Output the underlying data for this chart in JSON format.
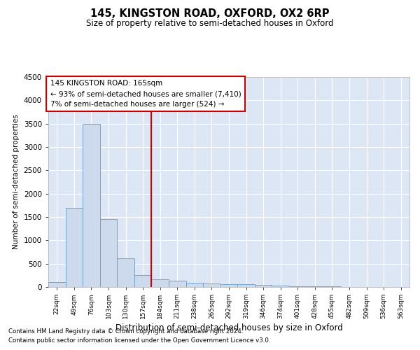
{
  "title1": "145, KINGSTON ROAD, OXFORD, OX2 6RP",
  "title2": "Size of property relative to semi-detached houses in Oxford",
  "xlabel": "Distribution of semi-detached houses by size in Oxford",
  "ylabel": "Number of semi-detached properties",
  "footnote1": "Contains HM Land Registry data © Crown copyright and database right 2024.",
  "footnote2": "Contains public sector information licensed under the Open Government Licence v3.0.",
  "annotation_line1": "145 KINGSTON ROAD: 165sqm",
  "annotation_line2": "← 93% of semi-detached houses are smaller (7,410)",
  "annotation_line3": "7% of semi-detached houses are larger (524) →",
  "bar_color": "#cdd9ec",
  "bar_edge_color": "#6b9ac4",
  "bg_color": "#dce6f5",
  "grid_color": "#ffffff",
  "vline_color": "#cc0000",
  "vline_x_index": 6,
  "ylim": [
    0,
    4500
  ],
  "yticks": [
    0,
    500,
    1000,
    1500,
    2000,
    2500,
    3000,
    3500,
    4000,
    4500
  ],
  "bin_labels": [
    "22sqm",
    "49sqm",
    "76sqm",
    "103sqm",
    "130sqm",
    "157sqm",
    "184sqm",
    "211sqm",
    "238sqm",
    "265sqm",
    "292sqm",
    "319sqm",
    "346sqm",
    "374sqm",
    "401sqm",
    "428sqm",
    "455sqm",
    "482sqm",
    "509sqm",
    "536sqm",
    "563sqm"
  ],
  "bar_heights": [
    100,
    1700,
    3500,
    1450,
    620,
    250,
    170,
    140,
    95,
    70,
    55,
    55,
    40,
    30,
    20,
    15,
    10,
    5,
    5,
    5,
    5
  ]
}
